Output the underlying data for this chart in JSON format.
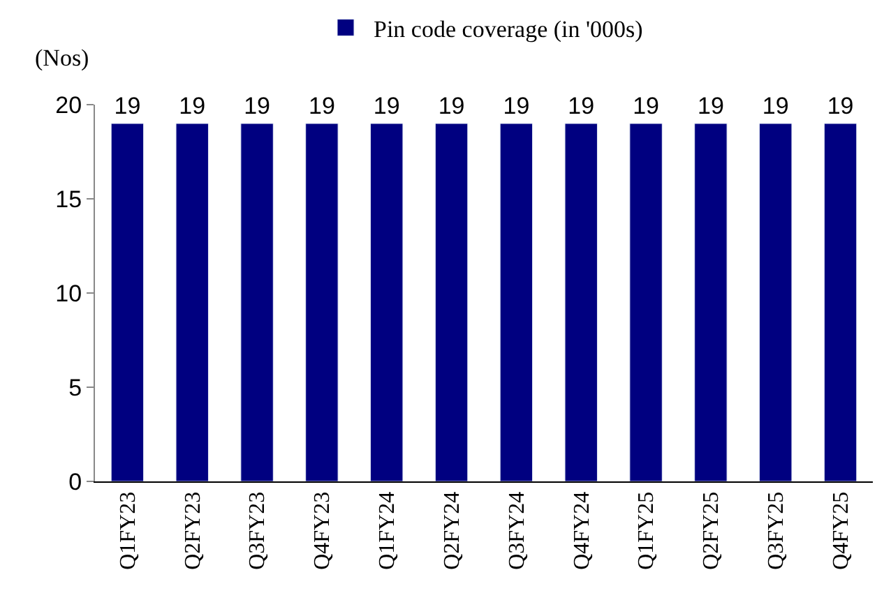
{
  "chart_data": {
    "type": "bar",
    "ylabel": "(Nos)",
    "categories": [
      "Q1FY23",
      "Q2FY23",
      "Q3FY23",
      "Q4FY23",
      "Q1FY24",
      "Q2FY24",
      "Q3FY24",
      "Q4FY24",
      "Q1FY25",
      "Q2FY25",
      "Q3FY25",
      "Q4FY25"
    ],
    "series": [
      {
        "name": "Pin code coverage (in '000s)",
        "color": "#000080",
        "values": [
          19,
          19,
          19,
          19,
          19,
          19,
          19,
          19,
          19,
          19,
          19,
          19
        ]
      }
    ],
    "ylim": [
      0,
      20
    ],
    "yticks": [
      0,
      5,
      10,
      15,
      20
    ],
    "data_labels": true,
    "legend": "top"
  }
}
